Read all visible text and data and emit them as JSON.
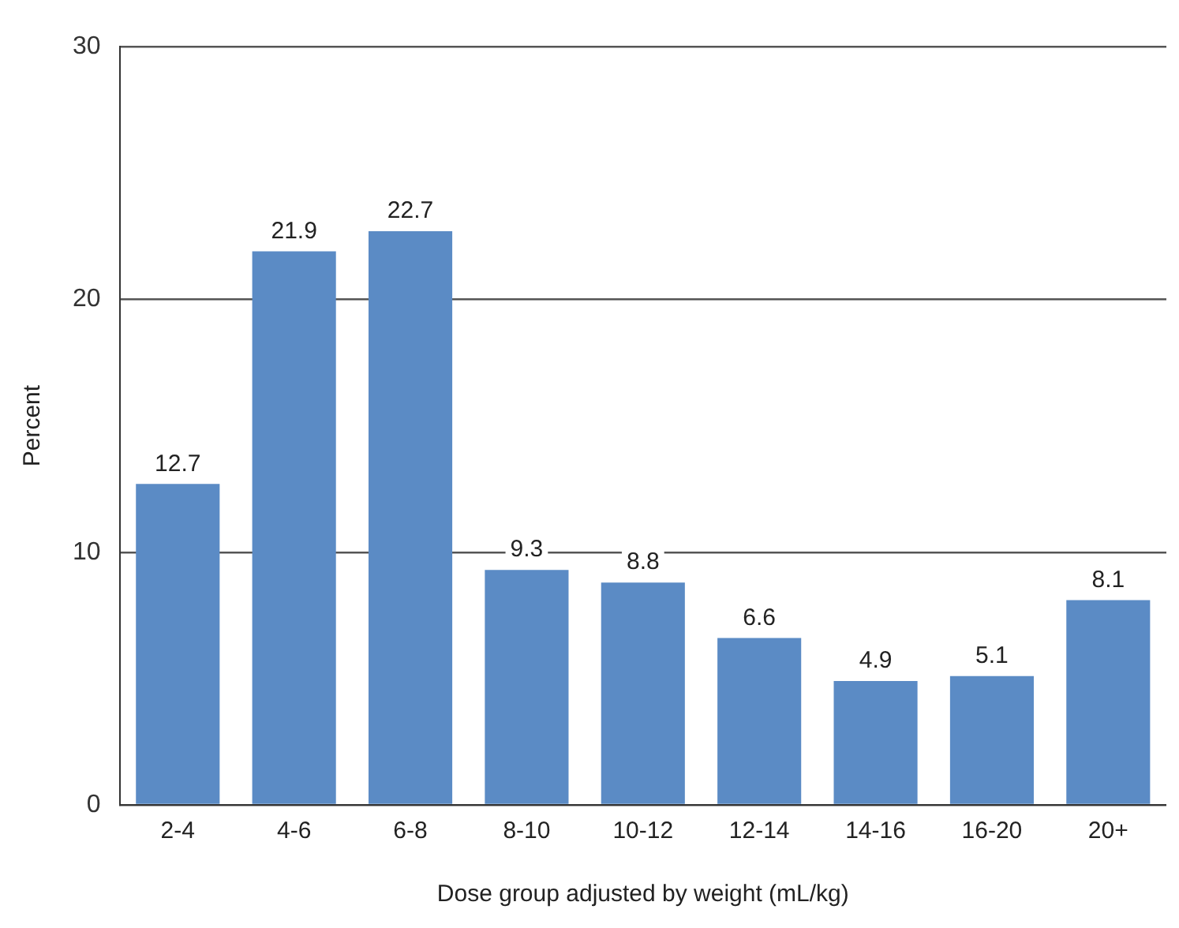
{
  "chart_data": {
    "type": "bar",
    "xlabel": "Dose group adjusted by weight (mL/kg)",
    "ylabel": "Percent",
    "categories": [
      "2-4",
      "4-6",
      "6-8",
      "8-10",
      "10-12",
      "12-14",
      "14-16",
      "16-20",
      "20+"
    ],
    "values": [
      12.7,
      21.9,
      22.7,
      9.3,
      8.8,
      6.6,
      4.9,
      5.1,
      8.1
    ],
    "color": "#5b8bc5",
    "ylim": [
      0,
      30
    ],
    "yticks": [
      0,
      10,
      20,
      30
    ],
    "grid": "y",
    "data_labels": true,
    "legend": false
  }
}
